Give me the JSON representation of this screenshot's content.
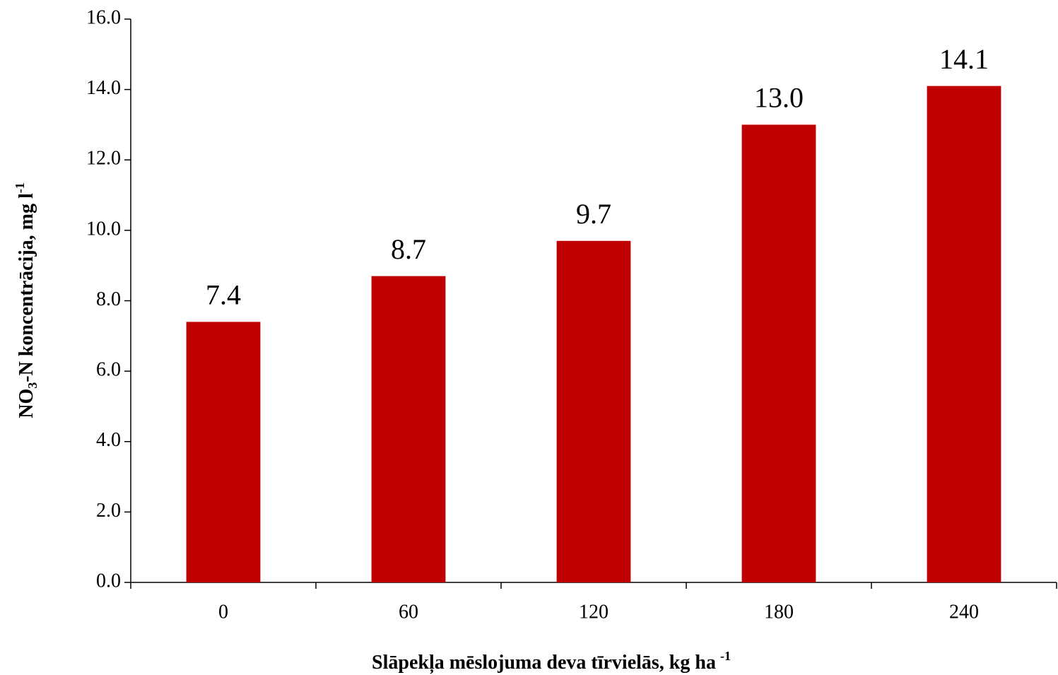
{
  "chart_data": {
    "type": "bar",
    "x_label": [
      "Slāpekļa mēslojuma deva tīrvielās, kg ha",
      "-1"
    ],
    "y_label": [
      "NO",
      "3",
      "-N koncentrācija, mg l",
      "-1"
    ],
    "categories": [
      "0",
      "60",
      "120",
      "180",
      "240"
    ],
    "values": [
      7.4,
      8.7,
      9.7,
      13.0,
      14.1
    ],
    "value_labels": [
      "7.4",
      "8.7",
      "9.7",
      "13.0",
      "14.1"
    ],
    "color": "#c00000",
    "ylim": [
      0,
      16
    ],
    "yticks": [
      {
        "value": 0,
        "label": "0.0"
      },
      {
        "value": 2,
        "label": "2.0"
      },
      {
        "value": 4,
        "label": "4.0"
      },
      {
        "value": 6,
        "label": "6.0"
      },
      {
        "value": 8,
        "label": "8.0"
      },
      {
        "value": 10,
        "label": "10.0"
      },
      {
        "value": 12,
        "label": "12.0"
      },
      {
        "value": 14,
        "label": "14.0"
      },
      {
        "value": 16,
        "label": "16.0"
      }
    ],
    "grid": false
  }
}
